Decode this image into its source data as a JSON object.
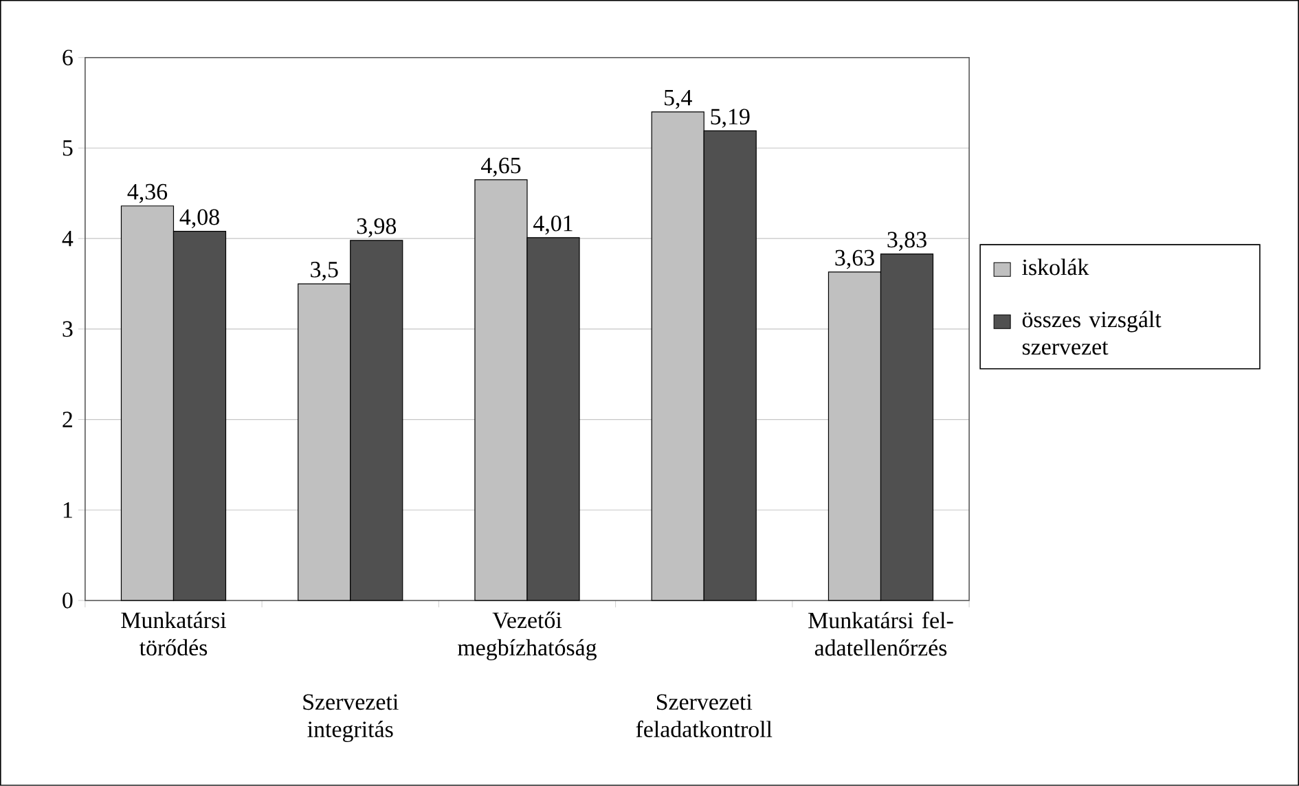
{
  "chart_data": {
    "type": "bar",
    "categories": [
      "Munkatársi törődés",
      "Szervezeti integritás",
      "Vezetői megbízhatóság",
      "Szervezeti feladatkontroll",
      "Munkatársi fel-adatellenőrzés"
    ],
    "series": [
      {
        "name": "iskolák",
        "color": "#c0c0c0",
        "values": [
          4.36,
          3.5,
          4.65,
          5.4,
          3.63
        ],
        "value_labels": [
          "4,36",
          "3,5",
          "4,65",
          "5,4",
          "3,63"
        ]
      },
      {
        "name": "összes vizsgált szervezet",
        "color": "#505050",
        "values": [
          4.08,
          3.98,
          4.01,
          5.19,
          3.83
        ],
        "value_labels": [
          "4,08",
          "3,98",
          "4,01",
          "5,19",
          "3,83"
        ]
      }
    ],
    "ylim": [
      0,
      6
    ],
    "yticks": [
      0,
      1,
      2,
      3,
      4,
      5,
      6
    ],
    "grid": "y",
    "legend": "right"
  }
}
